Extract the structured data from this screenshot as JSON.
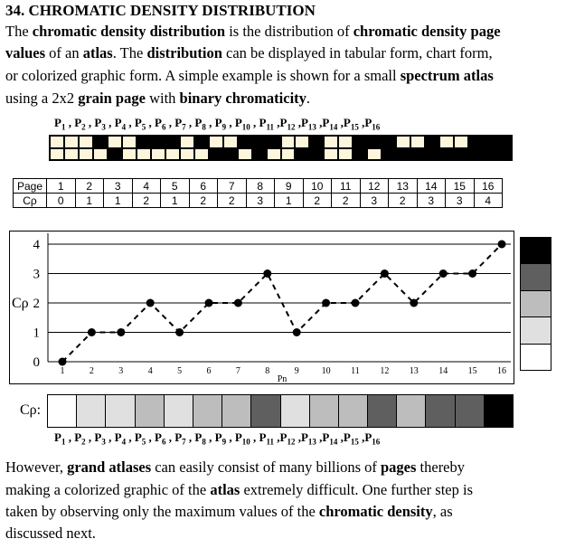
{
  "heading": "34.  CHROMATIC DENSITY DISTRIBUTION",
  "intro": {
    "line1": [
      {
        "t": "The ",
        "b": false
      },
      {
        "t": "chromatic density distribution",
        "b": true
      },
      {
        "t": " is the distribution of ",
        "b": false
      },
      {
        "t": "chromatic density page",
        "b": true
      }
    ],
    "line2": [
      {
        "t": "values",
        "b": true
      },
      {
        "t": " of an ",
        "b": false
      },
      {
        "t": "atlas",
        "b": true
      },
      {
        "t": ".  The ",
        "b": false
      },
      {
        "t": "distribution",
        "b": true
      },
      {
        "t": " can be displayed in tabular form, chart form,",
        "b": false
      }
    ],
    "line3": [
      {
        "t": "or colorized graphic form.  A simple example is shown for a small ",
        "b": false
      },
      {
        "t": "spectrum atlas",
        "b": true
      }
    ],
    "line4": [
      {
        "t": "using a 2x2 ",
        "b": false
      },
      {
        "t": "grain page",
        "b": true
      },
      {
        "t": " with ",
        "b": false
      },
      {
        "t": "binary chromaticity",
        "b": true
      },
      {
        "t": ".",
        "b": false
      }
    ]
  },
  "page_prefix": "P",
  "pages": [
    "1",
    "2",
    "3",
    "4",
    "5",
    "6",
    "7",
    "8",
    "9",
    "10",
    "11",
    "12",
    "13",
    "14",
    "15",
    "16"
  ],
  "grain_pages": [
    [
      0,
      0,
      0,
      0
    ],
    [
      0,
      1,
      0,
      0
    ],
    [
      0,
      0,
      1,
      0
    ],
    [
      1,
      1,
      0,
      0
    ],
    [
      1,
      0,
      0,
      0
    ],
    [
      1,
      0,
      0,
      1
    ],
    [
      0,
      1,
      1,
      0
    ],
    [
      1,
      1,
      1,
      0
    ],
    [
      0,
      0,
      0,
      1
    ],
    [
      1,
      0,
      1,
      0
    ],
    [
      0,
      1,
      0,
      1
    ],
    [
      1,
      1,
      0,
      1
    ],
    [
      0,
      0,
      1,
      1
    ],
    [
      1,
      0,
      1,
      1
    ],
    [
      0,
      1,
      1,
      1
    ],
    [
      1,
      1,
      1,
      1
    ]
  ],
  "table": {
    "row1_header": "Page",
    "row2_header": "Cρ",
    "pages": [
      "1",
      "2",
      "3",
      "4",
      "5",
      "6",
      "7",
      "8",
      "9",
      "10",
      "11",
      "12",
      "13",
      "14",
      "15",
      "16"
    ],
    "cp": [
      "0",
      "1",
      "1",
      "2",
      "1",
      "2",
      "2",
      "3",
      "1",
      "2",
      "2",
      "3",
      "2",
      "3",
      "3",
      "4"
    ]
  },
  "chart_data": {
    "type": "line",
    "x": [
      1,
      2,
      3,
      4,
      5,
      6,
      7,
      8,
      9,
      10,
      11,
      12,
      13,
      14,
      15,
      16
    ],
    "values": [
      0,
      1,
      1,
      2,
      1,
      2,
      2,
      3,
      1,
      2,
      2,
      3,
      2,
      3,
      3,
      4
    ],
    "xlabel": "Pn",
    "ylabel": "Cρ",
    "yticks": [
      "0",
      "1",
      "2",
      "3",
      "4"
    ],
    "ylim": [
      0,
      4
    ],
    "grid": true
  },
  "colors": {
    "levels": [
      "#ffffff",
      "#e0e0e0",
      "#bdbdbd",
      "#5f5f5f",
      "#000000"
    ],
    "grain_on": "#000000",
    "grain_off": "#fdf6dc"
  },
  "strip_label": "Cρ:",
  "outro": {
    "line1": [
      {
        "t": "However, ",
        "b": false
      },
      {
        "t": "grand atlases",
        "b": true
      },
      {
        "t": " can easily consist of many billions of ",
        "b": false
      },
      {
        "t": "pages",
        "b": true
      },
      {
        "t": " thereby",
        "b": false
      }
    ],
    "line2": [
      {
        "t": "making a colorized graphic of the ",
        "b": false
      },
      {
        "t": "atlas",
        "b": true
      },
      {
        "t": " extremely difficult.  One further step is",
        "b": false
      }
    ],
    "line3": [
      {
        "t": "taken by observing only the maximum values of the ",
        "b": false
      },
      {
        "t": "chromatic density",
        "b": true
      },
      {
        "t": ", as",
        "b": false
      }
    ],
    "line4": [
      {
        "t": "discussed next.",
        "b": false
      }
    ]
  }
}
